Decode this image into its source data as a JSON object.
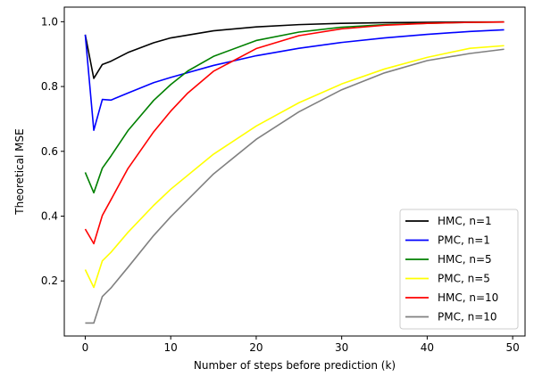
{
  "chart_data": {
    "type": "line",
    "title": "",
    "xlabel": "Number of steps before prediction (k)",
    "ylabel": "Theoretical MSE",
    "xlim": [
      -2.45,
      51.45
    ],
    "ylim": [
      0.03,
      1.045
    ],
    "xticks": [
      0,
      10,
      20,
      30,
      40,
      50
    ],
    "xtick_labels": [
      "0",
      "10",
      "20",
      "30",
      "40",
      "50"
    ],
    "yticks": [
      0.2,
      0.4,
      0.6,
      0.8,
      1.0
    ],
    "ytick_labels": [
      "0.2",
      "0.4",
      "0.6",
      "0.8",
      "1.0"
    ],
    "grid": false,
    "legend_position": "lower-right",
    "series": [
      {
        "name": "HMC, n=1",
        "color": "#000000",
        "x": [
          0,
          1,
          2,
          3,
          5,
          8,
          10,
          15,
          20,
          25,
          30,
          35,
          40,
          45,
          49
        ],
        "y": [
          0.96,
          0.825,
          0.868,
          0.878,
          0.905,
          0.935,
          0.95,
          0.972,
          0.984,
          0.991,
          0.995,
          0.997,
          0.998,
          0.999,
          0.999
        ]
      },
      {
        "name": "PMC, n=1",
        "color": "#0000ff",
        "x": [
          0,
          1,
          2,
          3,
          5,
          8,
          10,
          15,
          20,
          25,
          30,
          35,
          40,
          45,
          49
        ],
        "y": [
          0.96,
          0.665,
          0.76,
          0.758,
          0.78,
          0.812,
          0.828,
          0.865,
          0.895,
          0.918,
          0.936,
          0.95,
          0.961,
          0.97,
          0.975
        ]
      },
      {
        "name": "HMC, n=5",
        "color": "#008000",
        "x": [
          0,
          1,
          2,
          3,
          5,
          8,
          10,
          12,
          15,
          20,
          25,
          30,
          35,
          40,
          45,
          49
        ],
        "y": [
          0.535,
          0.472,
          0.548,
          0.585,
          0.664,
          0.757,
          0.806,
          0.848,
          0.893,
          0.942,
          0.968,
          0.983,
          0.991,
          0.995,
          0.998,
          0.999
        ]
      },
      {
        "name": "PMC, n=5",
        "color": "#ffff00",
        "x": [
          0,
          1,
          2,
          3,
          5,
          8,
          10,
          15,
          20,
          25,
          30,
          35,
          40,
          45,
          49
        ],
        "y": [
          0.235,
          0.18,
          0.262,
          0.288,
          0.35,
          0.433,
          0.483,
          0.591,
          0.678,
          0.75,
          0.808,
          0.854,
          0.89,
          0.918,
          0.926
        ]
      },
      {
        "name": "HMC, n=10",
        "color": "#ff0000",
        "x": [
          0,
          1,
          2,
          3,
          5,
          8,
          10,
          12,
          15,
          20,
          25,
          30,
          35,
          40,
          45,
          49
        ],
        "y": [
          0.36,
          0.315,
          0.402,
          0.45,
          0.547,
          0.66,
          0.724,
          0.78,
          0.847,
          0.917,
          0.957,
          0.978,
          0.989,
          0.995,
          0.998,
          0.999
        ]
      },
      {
        "name": "PMC, n=10",
        "color": "#808080",
        "x": [
          0,
          1,
          2,
          3,
          5,
          8,
          10,
          15,
          20,
          25,
          30,
          35,
          40,
          45,
          49
        ],
        "y": [
          0.07,
          0.07,
          0.152,
          0.178,
          0.242,
          0.34,
          0.398,
          0.53,
          0.637,
          0.722,
          0.79,
          0.842,
          0.88,
          0.902,
          0.915
        ]
      }
    ]
  }
}
